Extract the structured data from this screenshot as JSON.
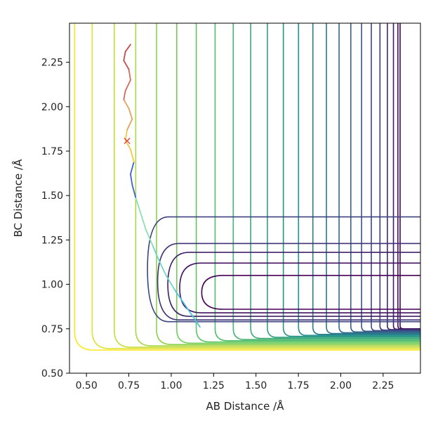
{
  "chart_data": {
    "type": "contour",
    "xlabel": "AB Distance /Å",
    "ylabel": "BC Distance /Å",
    "xlim": [
      0.4,
      2.47
    ],
    "ylim": [
      0.5,
      2.47
    ],
    "x_ticks": [
      "0.50",
      "0.75",
      "1.00",
      "1.25",
      "1.50",
      "1.75",
      "2.00",
      "2.25"
    ],
    "y_ticks": [
      "0.50",
      "0.75",
      "1.00",
      "1.25",
      "1.50",
      "1.75",
      "2.00",
      "2.25"
    ],
    "colormap": [
      "#440154",
      "#3b528b",
      "#21918c",
      "#5ec962",
      "#fde725"
    ],
    "contour_levels": 24,
    "trajectory": {
      "x": [
        1.17,
        1.12,
        1.07,
        1.02,
        0.97,
        0.93,
        0.89,
        0.85,
        0.82,
        0.79,
        0.77,
        0.76,
        0.78,
        0.76,
        0.73,
        0.74,
        0.77,
        0.75,
        0.72,
        0.73,
        0.76,
        0.75,
        0.72,
        0.73,
        0.76
      ],
      "y": [
        0.76,
        0.83,
        0.9,
        0.97,
        1.05,
        1.13,
        1.22,
        1.31,
        1.4,
        1.49,
        1.56,
        1.62,
        1.69,
        1.76,
        1.81,
        1.87,
        1.93,
        1.99,
        2.04,
        2.09,
        2.15,
        2.21,
        2.26,
        2.31,
        2.35
      ]
    },
    "marker": {
      "x": 0.74,
      "y": 1.81,
      "symbol": "×",
      "color": "#e8413a"
    }
  }
}
